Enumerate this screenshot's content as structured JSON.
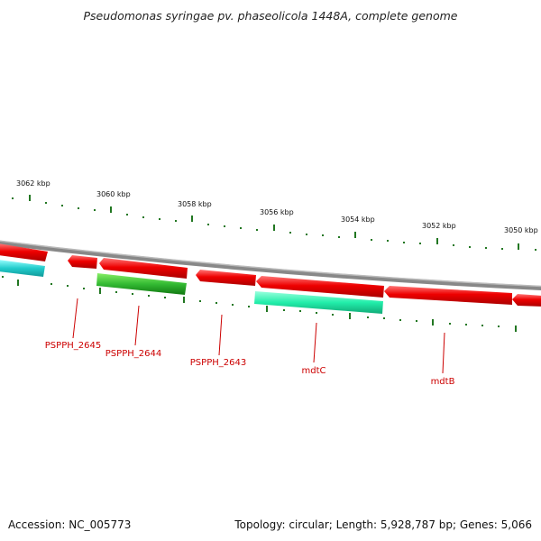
{
  "title": "Pseudomonas syringae pv. phaseolicola 1448A, complete genome",
  "footer": {
    "accession": "Accession: NC_005773",
    "summary": "Topology: circular; Length: 5,928,787 bp; Genes: 5,066"
  },
  "ticks": [
    "3062 kbp",
    "3060 kbp",
    "3058 kbp",
    "3056 kbp",
    "3054 kbp",
    "3052 kbp",
    "3050 kbp"
  ],
  "gene_labels": [
    "PSPPH_2645",
    "PSPPH_2644",
    "PSPPH_2643",
    "mdtC",
    "mdtB"
  ],
  "colors": {
    "backbone": "#888888",
    "forward_gene": "#ee0000",
    "reverse_gene_green": "#33bb33",
    "reverse_gene_teal": "#22eeaa",
    "reverse_gene_cyan": "#22cccc",
    "tick": "#227722",
    "label": "#cc0000"
  }
}
